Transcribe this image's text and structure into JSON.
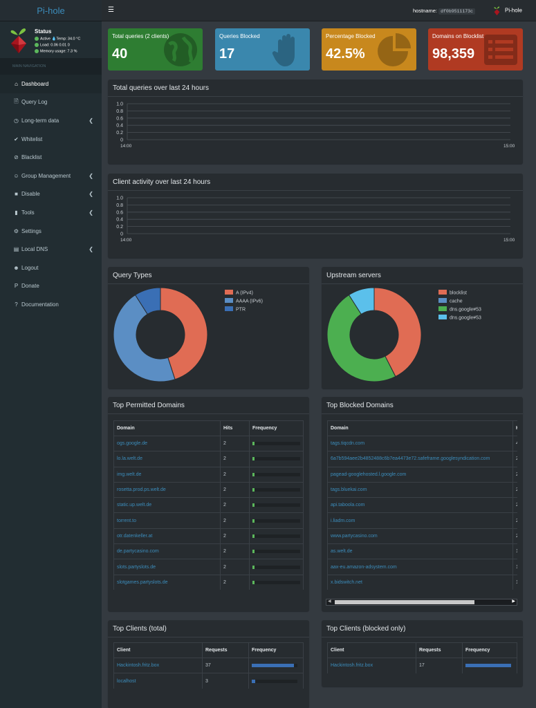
{
  "app": {
    "logo_text": "Pi-hole"
  },
  "status": {
    "title": "Status",
    "active": "Active",
    "temp": "Temp: 34.0 °C",
    "load": "Load:  0.06  0.01  0",
    "memory": "Memory usage:  7.3 %"
  },
  "nav": {
    "header": "MAIN NAVIGATION",
    "items": [
      {
        "label": "Dashboard",
        "icon": "home-icon"
      },
      {
        "label": "Query Log",
        "icon": "file-icon"
      },
      {
        "label": "Long-term data",
        "icon": "history-icon"
      },
      {
        "label": "Whitelist",
        "icon": "check-circle-icon"
      },
      {
        "label": "Blacklist",
        "icon": "ban-icon"
      },
      {
        "label": "Group Management",
        "icon": "users-icon"
      },
      {
        "label": "Disable",
        "icon": "stop-icon"
      },
      {
        "label": "Tools",
        "icon": "folder-icon"
      },
      {
        "label": "Settings",
        "icon": "gears-icon"
      },
      {
        "label": "Local DNS",
        "icon": "address-book-icon"
      },
      {
        "label": "Logout",
        "icon": "user-times-icon"
      },
      {
        "label": "Donate",
        "icon": "paypal-icon"
      },
      {
        "label": "Documentation",
        "icon": "question-circle-icon"
      }
    ]
  },
  "topbar": {
    "hostname_label": "hostname:",
    "hostname_value": "df0b9511173c",
    "user": "Pi-hole"
  },
  "stats": [
    {
      "label": "Total queries (2 clients)",
      "value": "40",
      "color": "#2e7d32",
      "icon": "globe-icon"
    },
    {
      "label": "Queries Blocked",
      "value": "17",
      "color": "#3a87ad",
      "icon": "hand-icon"
    },
    {
      "label": "Percentage Blocked",
      "value": "42.5%",
      "color": "#c8881d",
      "icon": "pie-chart-icon"
    },
    {
      "label": "Domains on Blocklist",
      "value": "98,359",
      "color": "#b03a22",
      "icon": "list-icon"
    }
  ],
  "charts": {
    "total_title": "Total queries over last 24 hours",
    "client_title": "Client activity over last 24 hours",
    "query_types_title": "Query Types",
    "upstream_title": "Upstream servers"
  },
  "chart_data": [
    {
      "type": "line",
      "title": "Total queries over last 24 hours",
      "y_ticks": [
        "1.0",
        "0.8",
        "0.6",
        "0.4",
        "0.2",
        "0"
      ],
      "x_ticks": [
        "14:00",
        "15:00"
      ],
      "series": []
    },
    {
      "type": "line",
      "title": "Client activity over last 24 hours",
      "y_ticks": [
        "1.0",
        "0.8",
        "0.6",
        "0.4",
        "0.2",
        "0"
      ],
      "x_ticks": [
        "14:00",
        "15:00"
      ],
      "series": []
    },
    {
      "type": "pie",
      "title": "Query Types",
      "labels": [
        "A (IPv4)",
        "AAAA (IPv6)",
        "PTR"
      ],
      "values": [
        45,
        46,
        9
      ],
      "colors": [
        "#e06c54",
        "#5b8ec4",
        "#3a6fb5"
      ]
    },
    {
      "type": "pie",
      "title": "Upstream servers",
      "labels": [
        "blocklist",
        "cache",
        "dns.google#53",
        "dns.google#53"
      ],
      "values": [
        42.5,
        0,
        48.5,
        9
      ],
      "colors": [
        "#e06c54",
        "#5b8ec4",
        "#4caf50",
        "#5bc0eb"
      ]
    }
  ],
  "permitted": {
    "title": "Top Permitted Domains",
    "headers": [
      "Domain",
      "Hits",
      "Frequency"
    ],
    "rows": [
      {
        "domain": "ogs.google.de",
        "hits": "2"
      },
      {
        "domain": "lo.la.welt.de",
        "hits": "2"
      },
      {
        "domain": "img.welt.de",
        "hits": "2"
      },
      {
        "domain": "rosetta.prod.ps.welt.de",
        "hits": "2"
      },
      {
        "domain": "static.up.welt.de",
        "hits": "2"
      },
      {
        "domain": "torrent.to",
        "hits": "2"
      },
      {
        "domain": "otr.datenkeller.at",
        "hits": "2"
      },
      {
        "domain": "de.partycasino.com",
        "hits": "2"
      },
      {
        "domain": "slots.partyslots.de",
        "hits": "2"
      },
      {
        "domain": "slotgames.partyslots.de",
        "hits": "2"
      }
    ],
    "frequency": 0.05,
    "bar_color": "#5cb85c"
  },
  "blocked": {
    "title": "Top Blocked Domains",
    "headers": [
      "Domain",
      "H"
    ],
    "rows": [
      {
        "domain": "tags.tiqcdn.com",
        "hits": "4"
      },
      {
        "domain": "6a7b594aee2b4852488c6b7ea4473e72.safeframe.googlesyndication.com",
        "hits": "2"
      },
      {
        "domain": "pagead-googlehosted.l.google.com",
        "hits": "2"
      },
      {
        "domain": "tags.bluekai.com",
        "hits": "2"
      },
      {
        "domain": "api.taboola.com",
        "hits": "2"
      },
      {
        "domain": "i.liadm.com",
        "hits": "2"
      },
      {
        "domain": "www.partycasino.com",
        "hits": "2"
      },
      {
        "domain": "as.welt.de",
        "hits": "1"
      },
      {
        "domain": "aax-eu.amazon-adsystem.com",
        "hits": "1"
      },
      {
        "domain": "x.bidswitch.net",
        "hits": "1"
      }
    ]
  },
  "clients_total": {
    "title": "Top Clients (total)",
    "headers": [
      "Client",
      "Requests",
      "Frequency"
    ],
    "rows": [
      {
        "client": "Hackintosh.fritz.box",
        "requests": "37",
        "frequency": 0.92
      },
      {
        "client": "localhost",
        "requests": "3",
        "frequency": 0.08
      }
    ],
    "bar_color": "#3a6fb5"
  },
  "clients_blocked": {
    "title": "Top Clients (blocked only)",
    "headers": [
      "Client",
      "Requests",
      "Frequency"
    ],
    "rows": [
      {
        "client": "Hackintosh.fritz.box",
        "requests": "17",
        "frequency": 1.0
      }
    ],
    "bar_color": "#3a6fb5"
  }
}
